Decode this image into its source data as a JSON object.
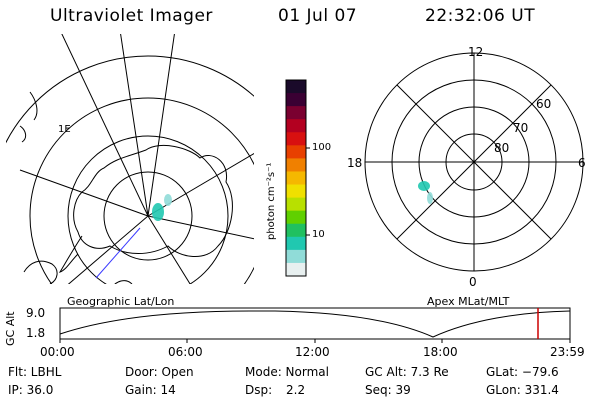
{
  "header": {
    "instrument": "Ultraviolet Imager",
    "date": "01 Jul 07",
    "time": "22:32:06 UT"
  },
  "left_map": {
    "label": "Geographic Lat/Lon",
    "lat_label": "1E"
  },
  "right_map": {
    "label": "Apex MLat/MLT",
    "mlt_labels": {
      "top": "12",
      "left": "18",
      "right": "6",
      "bottom": "0"
    },
    "lat_labels": [
      "60",
      "70",
      "80"
    ]
  },
  "colorbar": {
    "unit_label": "photon cm⁻²s⁻¹",
    "tick_labels": [
      "100",
      "10"
    ],
    "colors": [
      "#1a0a2a",
      "#3a0033",
      "#7a0030",
      "#b30020",
      "#d81010",
      "#e84000",
      "#f08000",
      "#f5b800",
      "#f0e000",
      "#b8e000",
      "#60d000",
      "#20c060",
      "#20c8b0",
      "#90dcd8",
      "#e8f0f0"
    ]
  },
  "altitude_plot": {
    "y_axis_label": "GC Alt",
    "y_ticks": [
      "9.0",
      "1.8"
    ],
    "x_ticks": [
      "00:00",
      "06:00",
      "12:00",
      "18:00",
      "23:59"
    ],
    "marker_color": "#cc0000"
  },
  "info": {
    "row1": {
      "flt": "Flt: LBHL",
      "door": "Door: Open",
      "mode": "Mode: Normal",
      "gcalt": "GC Alt: 7.3 Re",
      "glat": "GLat: −79.6"
    },
    "row2": {
      "ip": "IP: 36.0",
      "gain": "Gain: 14",
      "dsp_label": "Dsp:",
      "dsp_value": "2.2",
      "seq": "Seq: 39",
      "glon": "GLon: 331.4"
    }
  }
}
